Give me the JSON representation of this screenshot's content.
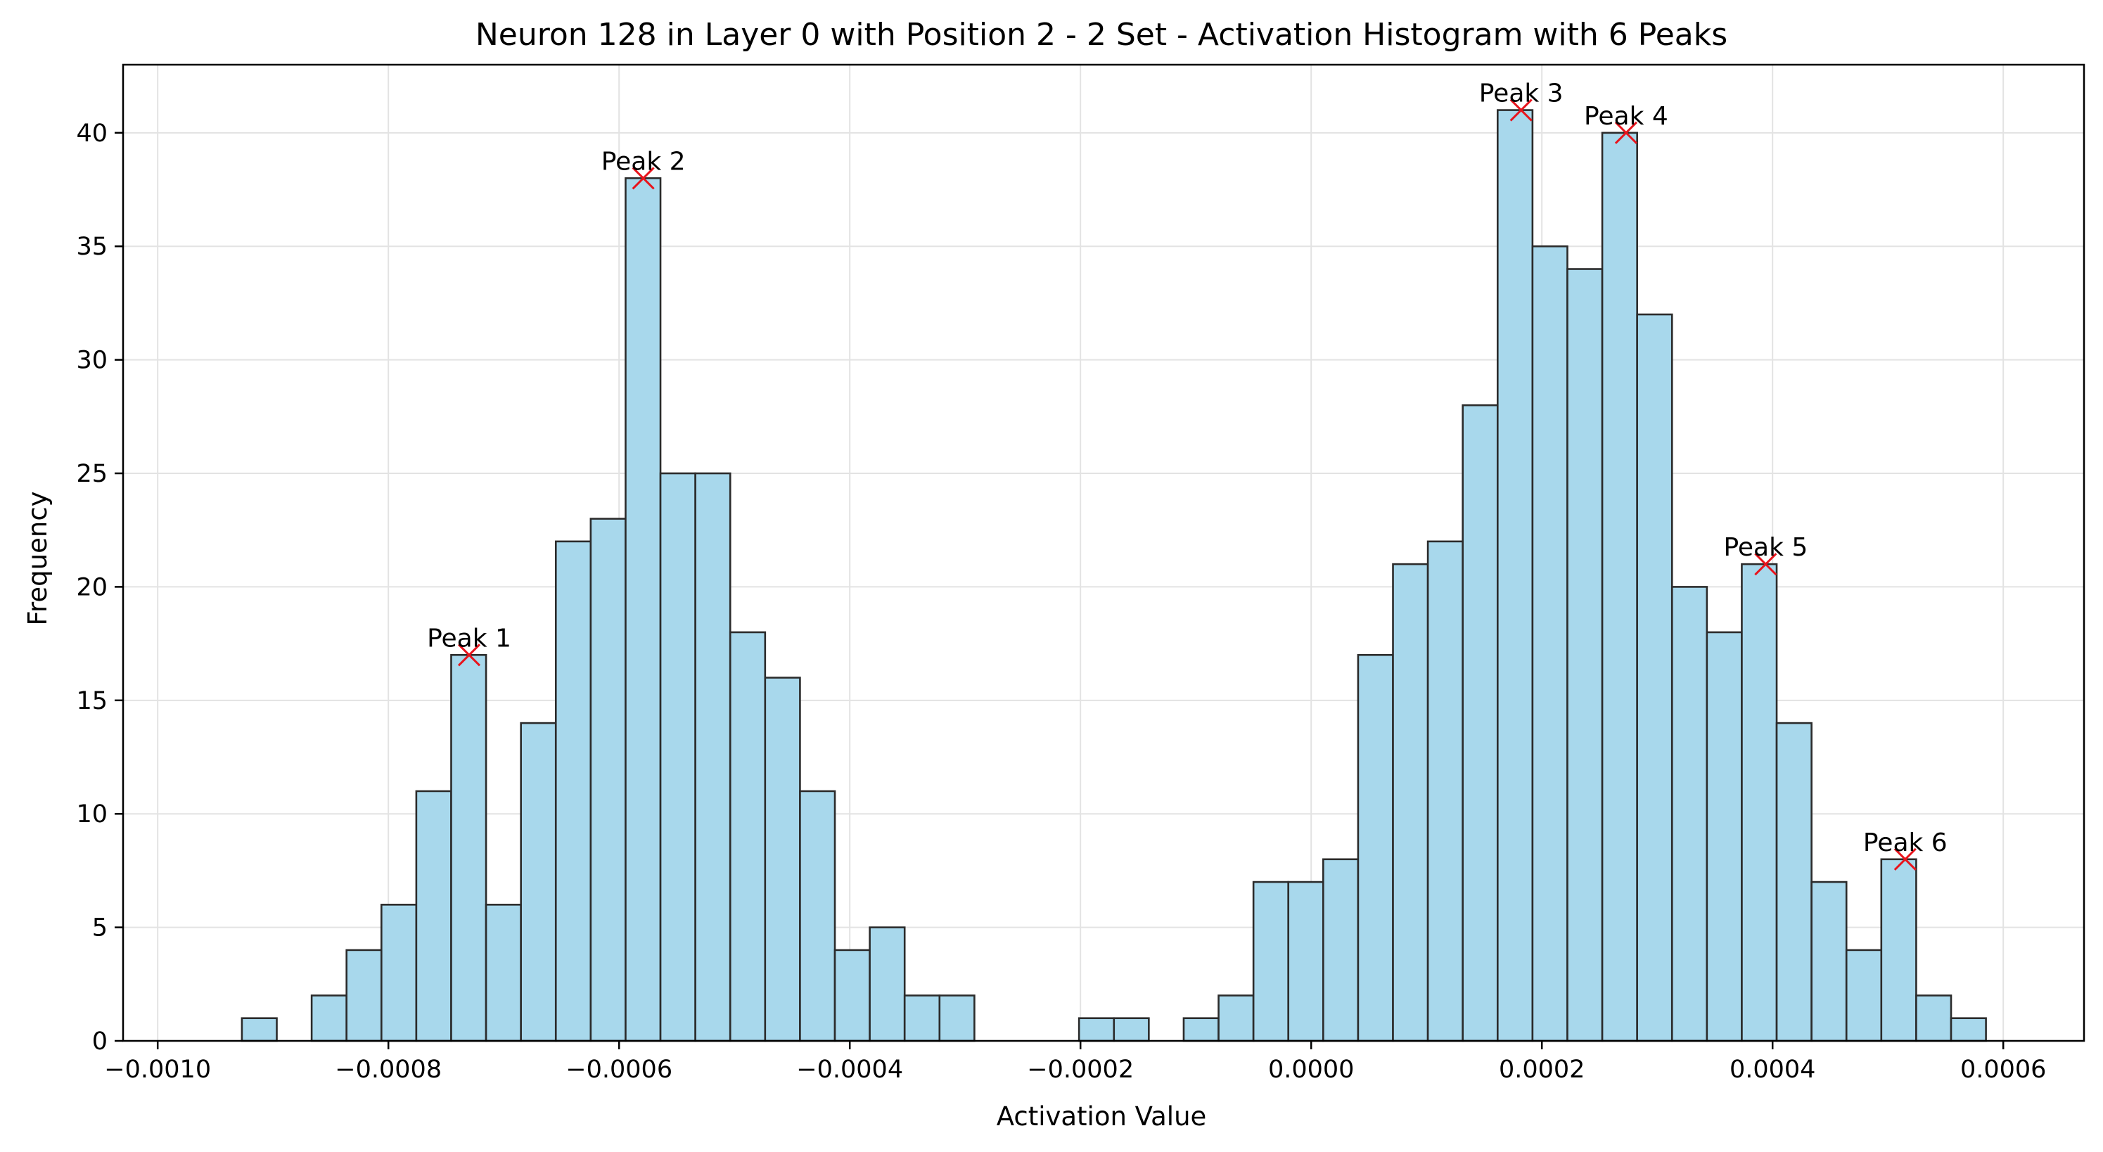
{
  "chart_data": {
    "type": "bar",
    "title": "Neuron 128 in Layer 0 with Position 2 - 2 Set - Activation Histogram with 6 Peaks",
    "xlabel": "Activation Value",
    "ylabel": "Frequency",
    "xlim": [
      -0.00103,
      0.00067
    ],
    "ylim": [
      0,
      43
    ],
    "grid": true,
    "x_ticks": [
      {
        "value": -0.001,
        "label": "−0.0010"
      },
      {
        "value": -0.0008,
        "label": "−0.0008"
      },
      {
        "value": -0.0006,
        "label": "−0.0006"
      },
      {
        "value": -0.0004,
        "label": "−0.0004"
      },
      {
        "value": -0.0002,
        "label": "−0.0002"
      },
      {
        "value": 0.0,
        "label": "0.0000"
      },
      {
        "value": 0.0002,
        "label": "0.0002"
      },
      {
        "value": 0.0004,
        "label": "0.0004"
      },
      {
        "value": 0.0006,
        "label": "0.0006"
      }
    ],
    "y_ticks": [
      {
        "value": 0,
        "label": "0"
      },
      {
        "value": 5,
        "label": "5"
      },
      {
        "value": 10,
        "label": "10"
      },
      {
        "value": 15,
        "label": "15"
      },
      {
        "value": 20,
        "label": "20"
      },
      {
        "value": 25,
        "label": "25"
      },
      {
        "value": 30,
        "label": "30"
      },
      {
        "value": 35,
        "label": "35"
      },
      {
        "value": 40,
        "label": "40"
      }
    ],
    "bin_start": -0.000927,
    "bin_width": 3.024e-05,
    "counts": [
      1,
      0,
      2,
      4,
      6,
      11,
      17,
      6,
      14,
      22,
      23,
      38,
      25,
      25,
      18,
      16,
      11,
      4,
      5,
      2,
      2,
      0,
      0,
      0,
      1,
      1,
      0,
      1,
      2,
      7,
      7,
      8,
      17,
      21,
      22,
      28,
      41,
      35,
      34,
      40,
      32,
      20,
      18,
      21,
      14,
      7,
      4,
      8,
      2,
      1
    ],
    "bar_color": "#a8d8ec",
    "bar_edge_color": "#2b2b2b",
    "peak_color": "#e8141c",
    "peaks": [
      {
        "label": "Peak 1",
        "x": -0.00073,
        "y": 17
      },
      {
        "label": "Peak 2",
        "x": -0.000579,
        "y": 38
      },
      {
        "label": "Peak 3",
        "x": 0.000182,
        "y": 41
      },
      {
        "label": "Peak 4",
        "x": 0.000273,
        "y": 40
      },
      {
        "label": "Peak 5",
        "x": 0.000394,
        "y": 21
      },
      {
        "label": "Peak 6",
        "x": 0.000515,
        "y": 8
      }
    ]
  }
}
